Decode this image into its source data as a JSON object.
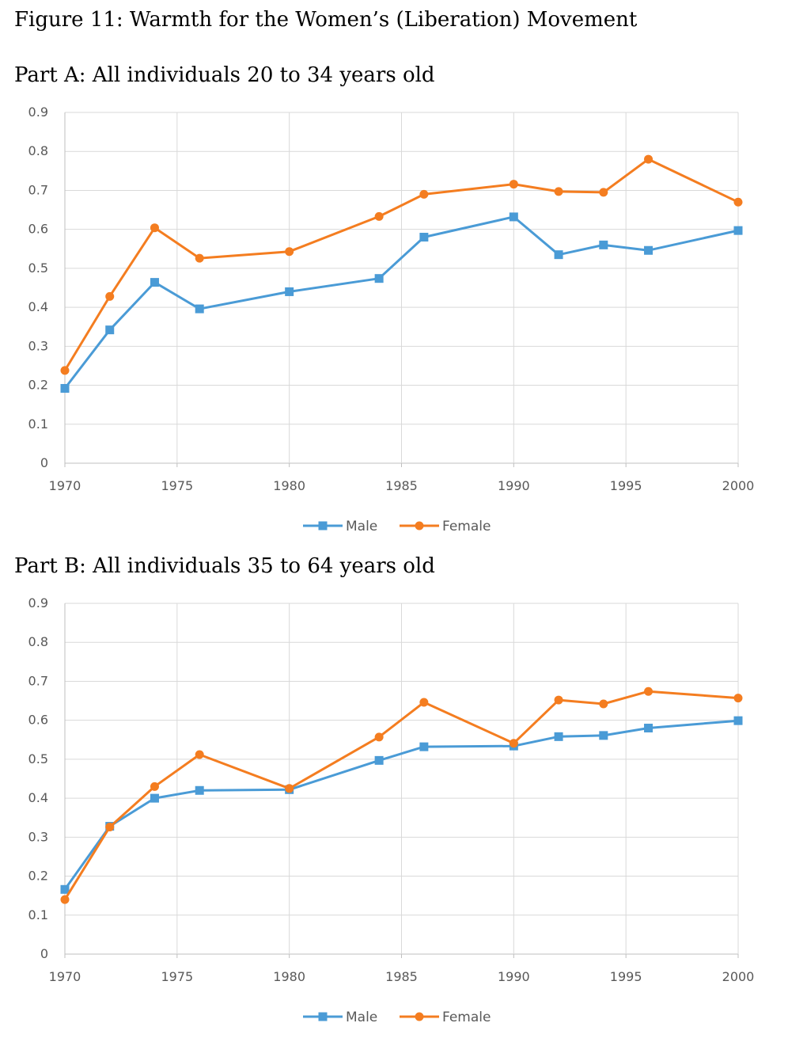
{
  "figure_title": "Figure 11: Warmth for the Women’s (Liberation) Movement",
  "colors": {
    "male": "#4a9bd6",
    "female": "#f47d20",
    "grid": "#d9d9d9",
    "axis": "#bfbfbf"
  },
  "chart_data": [
    {
      "type": "line",
      "title": "Part A: All individuals 20 to 34 years old",
      "xlim": [
        1970,
        2000
      ],
      "ylim": [
        0,
        0.9
      ],
      "x_ticks": [
        "1970",
        "1975",
        "1980",
        "1985",
        "1990",
        "1995",
        "2000"
      ],
      "y_ticks": [
        "0",
        "0.1",
        "0.2",
        "0.3",
        "0.4",
        "0.5",
        "0.6",
        "0.7",
        "0.8",
        "0.9"
      ],
      "grid": true,
      "legend": "bottom",
      "series": [
        {
          "name": "Male",
          "marker": "square",
          "color": "#4a9bd6",
          "x": [
            1970,
            1972,
            1974,
            1976,
            1980,
            1984,
            1986,
            1990,
            1992,
            1994,
            1996,
            2000
          ],
          "y": [
            0.192,
            0.342,
            0.464,
            0.396,
            0.44,
            0.474,
            0.58,
            0.632,
            0.535,
            0.56,
            0.546,
            0.597
          ]
        },
        {
          "name": "Female",
          "marker": "circle",
          "color": "#f47d20",
          "x": [
            1970,
            1972,
            1974,
            1976,
            1980,
            1984,
            1986,
            1990,
            1992,
            1994,
            1996,
            2000
          ],
          "y": [
            0.238,
            0.428,
            0.604,
            0.526,
            0.543,
            0.633,
            0.69,
            0.716,
            0.697,
            0.695,
            0.78,
            0.67
          ]
        }
      ]
    },
    {
      "type": "line",
      "title": "Part B:  All individuals 35 to 64 years old",
      "xlim": [
        1970,
        2000
      ],
      "ylim": [
        0,
        0.9
      ],
      "x_ticks": [
        "1970",
        "1975",
        "1980",
        "1985",
        "1990",
        "1995",
        "2000"
      ],
      "y_ticks": [
        "0",
        "0.1",
        "0.2",
        "0.3",
        "0.4",
        "0.5",
        "0.6",
        "0.7",
        "0.8",
        "0.9"
      ],
      "grid": true,
      "legend": "bottom",
      "series": [
        {
          "name": "Male",
          "marker": "square",
          "color": "#4a9bd6",
          "x": [
            1970,
            1972,
            1974,
            1976,
            1980,
            1984,
            1986,
            1990,
            1992,
            1994,
            1996,
            2000
          ],
          "y": [
            0.166,
            0.328,
            0.4,
            0.42,
            0.422,
            0.497,
            0.532,
            0.534,
            0.558,
            0.561,
            0.58,
            0.599
          ]
        },
        {
          "name": "Female",
          "marker": "circle",
          "color": "#f47d20",
          "x": [
            1970,
            1972,
            1974,
            1976,
            1980,
            1984,
            1986,
            1990,
            1992,
            1994,
            1996,
            2000
          ],
          "y": [
            0.14,
            0.326,
            0.43,
            0.512,
            0.425,
            0.557,
            0.646,
            0.541,
            0.652,
            0.642,
            0.674,
            0.657
          ]
        }
      ]
    }
  ]
}
